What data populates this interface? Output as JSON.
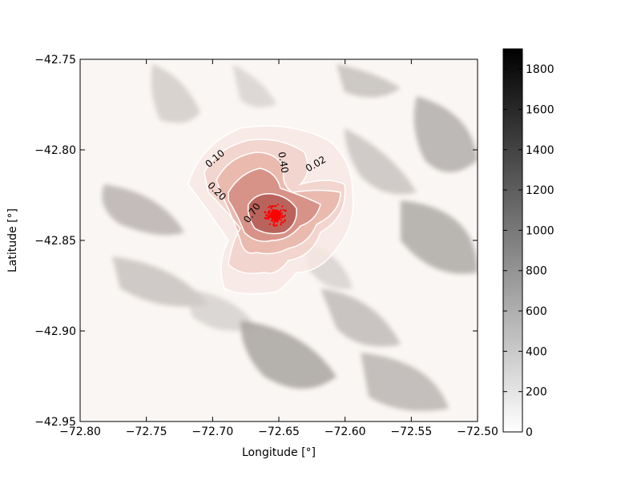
{
  "chart_data": {
    "type": "heatmap",
    "title": "",
    "xlabel": "Longitude [°]",
    "ylabel": "Latitude [°]",
    "xlim": [
      -72.8,
      -72.5
    ],
    "ylim": [
      -42.95,
      -42.75
    ],
    "xticks": [
      {
        "value": -72.8,
        "label": "−72.80"
      },
      {
        "value": -72.75,
        "label": "−72.75"
      },
      {
        "value": -72.7,
        "label": "−72.70"
      },
      {
        "value": -72.65,
        "label": "−72.65"
      },
      {
        "value": -72.6,
        "label": "−72.60"
      },
      {
        "value": -72.55,
        "label": "−72.55"
      },
      {
        "value": -72.5,
        "label": "−72.50"
      }
    ],
    "yticks": [
      {
        "value": -42.75,
        "label": "−42.75"
      },
      {
        "value": -42.8,
        "label": "−42.80"
      },
      {
        "value": -42.85,
        "label": "−42.85"
      },
      {
        "value": -42.9,
        "label": "−42.90"
      },
      {
        "value": -42.95,
        "label": "−42.95"
      }
    ],
    "colorbar": {
      "cmap": "grey",
      "range": [
        0,
        1900
      ],
      "ticks": [
        {
          "value": 0,
          "label": "0"
        },
        {
          "value": 200,
          "label": "200"
        },
        {
          "value": 400,
          "label": "400"
        },
        {
          "value": 600,
          "label": "600"
        },
        {
          "value": 800,
          "label": "800"
        },
        {
          "value": 1000,
          "label": "1000"
        },
        {
          "value": 1200,
          "label": "1200"
        },
        {
          "value": 1400,
          "label": "1400"
        },
        {
          "value": 1600,
          "label": "1600"
        },
        {
          "value": 1800,
          "label": "1800"
        }
      ]
    },
    "vent": {
      "lon": -72.6525,
      "lat": -42.836
    },
    "contours": [
      {
        "level": 0.02,
        "label": "0.02",
        "label_lon": -72.622,
        "label_lat": -42.808,
        "label_angle": -30
      },
      {
        "level": 0.1,
        "label": "0.10",
        "label_lon": -72.698,
        "label_lat": -42.805,
        "label_angle": -40
      },
      {
        "level": 0.2,
        "label": "0.20",
        "label_lon": -72.697,
        "label_lat": -42.823,
        "label_angle": 45
      },
      {
        "level": 0.4,
        "label": "0.40",
        "label_lon": -72.647,
        "label_lat": -42.807,
        "label_angle": 80
      },
      {
        "level": 0.7,
        "label": "0.70",
        "label_lon": -72.67,
        "label_lat": -42.835,
        "label_angle": -55
      }
    ],
    "colors": {
      "fill_low": "#f6d4ce",
      "fill_high": "#b24a45",
      "contour_line": "#ffffff",
      "points": "#ff0000",
      "background": "#faf6f3"
    }
  }
}
